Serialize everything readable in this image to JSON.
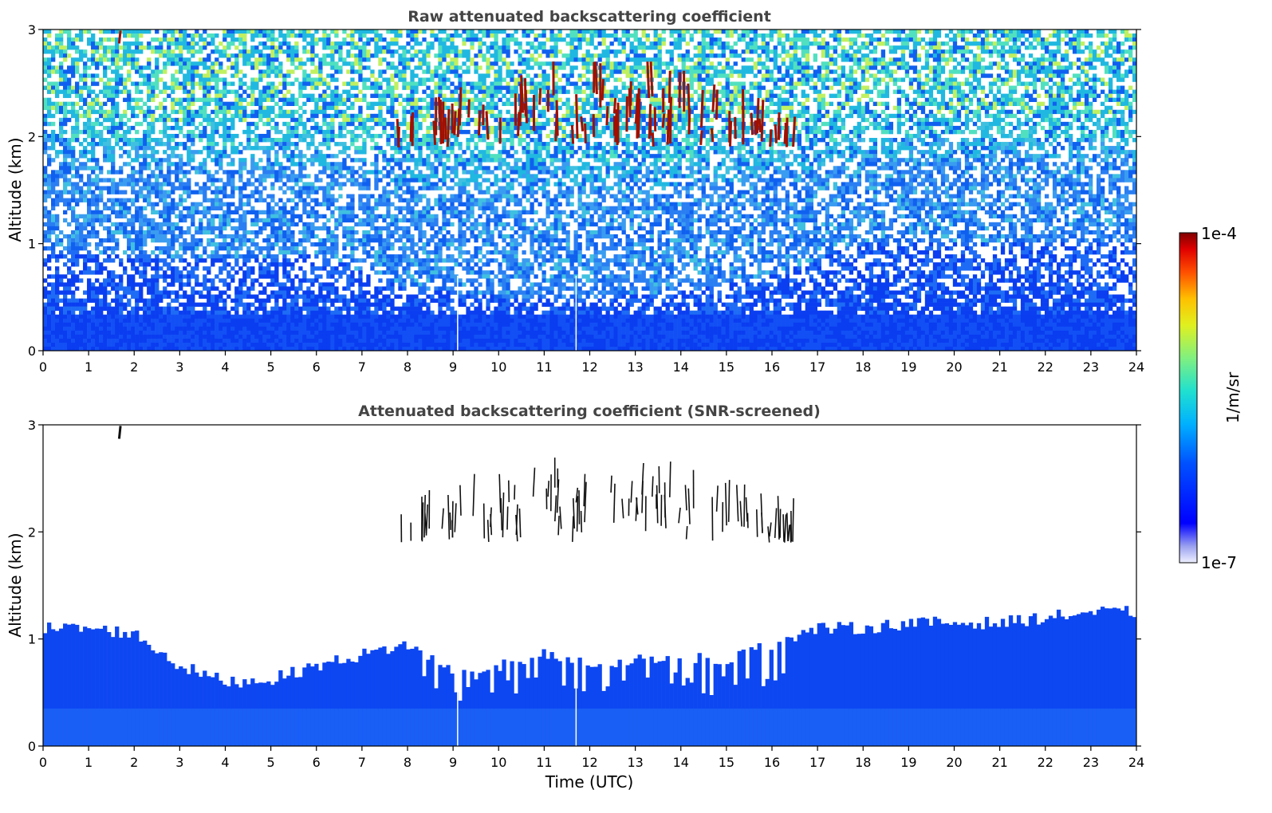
{
  "chart_data": [
    {
      "type": "heatmap",
      "title": "Raw attenuated backscattering coefficient",
      "xlabel": "",
      "ylabel": "Altitude (km)",
      "xlim": [
        0,
        24
      ],
      "ylim": [
        0,
        3
      ],
      "xticks": [
        "0",
        "1",
        "2",
        "3",
        "4",
        "5",
        "6",
        "7",
        "8",
        "9",
        "10",
        "11",
        "12",
        "13",
        "14",
        "15",
        "16",
        "17",
        "18",
        "19",
        "20",
        "21",
        "22",
        "23",
        "24"
      ],
      "yticks": [
        "0",
        "1",
        "2",
        "3"
      ],
      "colorbar": {
        "min_label": "1e-7",
        "max_label": "1e-4",
        "label": "1/m/sr",
        "colormap": "jet"
      },
      "features": {
        "noisy_boundary_layer_top_km": [
          [
            0,
            0.95
          ],
          [
            2,
            0.9
          ],
          [
            4,
            0.85
          ],
          [
            6,
            0.9
          ],
          [
            8,
            0.6
          ],
          [
            10,
            0.5
          ],
          [
            12,
            0.5
          ],
          [
            14,
            0.55
          ],
          [
            16,
            0.7
          ],
          [
            18,
            1.0
          ],
          [
            20,
            1.0
          ],
          [
            22,
            1.0
          ],
          [
            24,
            1.0
          ]
        ],
        "cloud_layer_km": [
          1.7,
          2.7
        ],
        "cloud_hours_utc": [
          7.8,
          16.5
        ],
        "data_gaps_utc": [
          9.1,
          11.7
        ]
      }
    },
    {
      "type": "heatmap",
      "title": "Attenuated backscattering coefficient (SNR-screened)",
      "xlabel": "Time (UTC)",
      "ylabel": "Altitude (km)",
      "xlim": [
        0,
        24
      ],
      "ylim": [
        0,
        3
      ],
      "xticks": [
        "0",
        "1",
        "2",
        "3",
        "4",
        "5",
        "6",
        "7",
        "8",
        "9",
        "10",
        "11",
        "12",
        "13",
        "14",
        "15",
        "16",
        "17",
        "18",
        "19",
        "20",
        "21",
        "22",
        "23",
        "24"
      ],
      "yticks": [
        "0",
        "1",
        "2",
        "3"
      ],
      "colorbar": {
        "min_label": "1e-7",
        "max_label": "1e-4",
        "label": "1/m/sr",
        "colormap": "jet"
      },
      "features": {
        "boundary_layer_top_km": [
          [
            0,
            1.1
          ],
          [
            1,
            1.1
          ],
          [
            2,
            1.05
          ],
          [
            3,
            0.75
          ],
          [
            4,
            0.6
          ],
          [
            5,
            0.62
          ],
          [
            6,
            0.75
          ],
          [
            7,
            0.85
          ],
          [
            8,
            0.95
          ],
          [
            9,
            0.7
          ],
          [
            10,
            0.75
          ],
          [
            11,
            0.85
          ],
          [
            12,
            0.75
          ],
          [
            13,
            0.8
          ],
          [
            14,
            0.85
          ],
          [
            15,
            0.8
          ],
          [
            16,
            0.95
          ],
          [
            17,
            1.1
          ],
          [
            18,
            1.1
          ],
          [
            19,
            1.15
          ],
          [
            20,
            1.15
          ],
          [
            21,
            1.15
          ],
          [
            22,
            1.2
          ],
          [
            23,
            1.25
          ],
          [
            24,
            1.25
          ]
        ],
        "cloud_layer_km": [
          1.7,
          2.7
        ],
        "cloud_hours_utc": [
          7.8,
          16.5
        ],
        "data_gaps_utc": [
          9.1,
          11.7
        ]
      }
    }
  ]
}
